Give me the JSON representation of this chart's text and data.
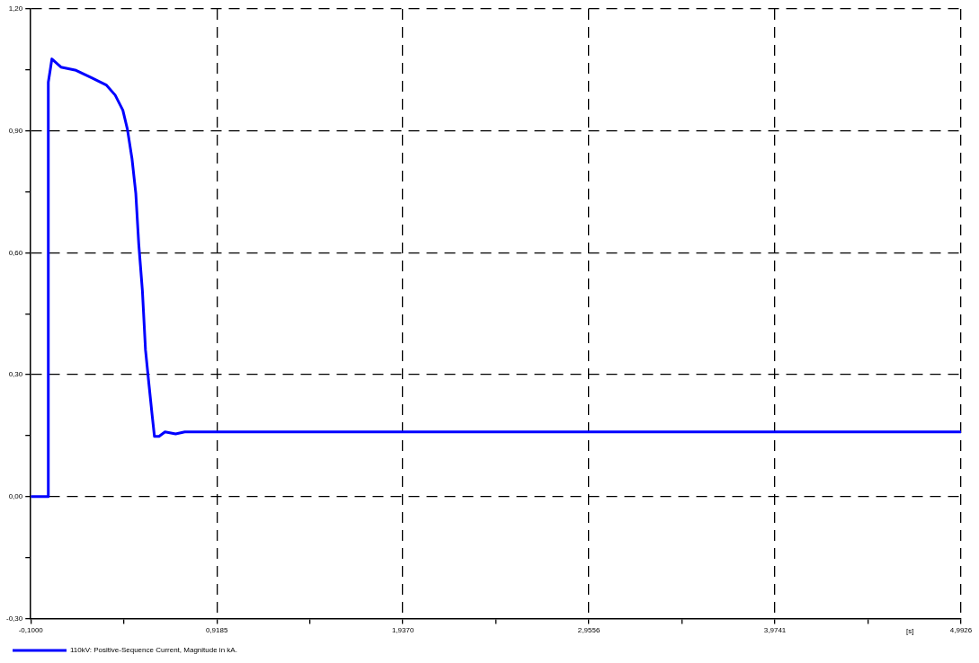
{
  "chart_data": {
    "type": "line",
    "xlabel": "[s]",
    "x": [
      -0.1,
      -0.004,
      -0.004,
      0.0075,
      0.0155,
      0.065,
      0.148,
      0.231,
      0.313,
      0.362,
      0.404,
      0.429,
      0.454,
      0.475,
      0.491,
      0.511,
      0.528,
      0.544,
      0.564,
      0.577,
      0.602,
      0.635,
      0.693,
      0.743,
      4.9926
    ],
    "series": [
      {
        "name": "110kV: Positive-Sequence Current, Magnitude in kA.",
        "color": "#0000ff",
        "values": [
          0,
          0,
          1.02,
          1.053,
          1.077,
          1.057,
          1.049,
          1.031,
          1.013,
          0.988,
          0.951,
          0.904,
          0.832,
          0.746,
          0.622,
          0.507,
          0.361,
          0.289,
          0.202,
          0.148,
          0.148,
          0.159,
          0.154,
          0.159,
          0.159
        ]
      }
    ],
    "xlim": [
      -0.1,
      4.9926
    ],
    "xticks": [
      {
        "value": -0.1,
        "label": "-0,1000"
      },
      {
        "value": 0.40925,
        "label": null
      },
      {
        "value": 0.9185,
        "label": "0,9185"
      },
      {
        "value": 1.42775,
        "label": null
      },
      {
        "value": 1.937,
        "label": "1,9370"
      },
      {
        "value": 2.4463,
        "label": null
      },
      {
        "value": 2.9556,
        "label": "2,9556"
      },
      {
        "value": 3.46485,
        "label": null
      },
      {
        "value": 3.9741,
        "label": "3,9741"
      },
      {
        "value": 4.48335,
        "label": null
      },
      {
        "value": 4.9926,
        "label": "4,9926"
      }
    ],
    "ylim": [
      -0.3,
      1.2
    ],
    "yticks": [
      {
        "value": -0.3,
        "label": "-0,30"
      },
      {
        "value": -0.15,
        "label": null
      },
      {
        "value": 0,
        "label": "0,00"
      },
      {
        "value": 0.15,
        "label": null
      },
      {
        "value": 0.3,
        "label": "0,30"
      },
      {
        "value": 0.45,
        "label": null
      },
      {
        "value": 0.6,
        "label": "0,60"
      },
      {
        "value": 0.75,
        "label": null
      },
      {
        "value": 0.9,
        "label": "0,90"
      },
      {
        "value": 1.05,
        "label": null
      },
      {
        "value": 1.2,
        "label": "1,20"
      }
    ],
    "grid": true,
    "legend": "bottom left",
    "marker": "none",
    "line_style": "solid"
  }
}
